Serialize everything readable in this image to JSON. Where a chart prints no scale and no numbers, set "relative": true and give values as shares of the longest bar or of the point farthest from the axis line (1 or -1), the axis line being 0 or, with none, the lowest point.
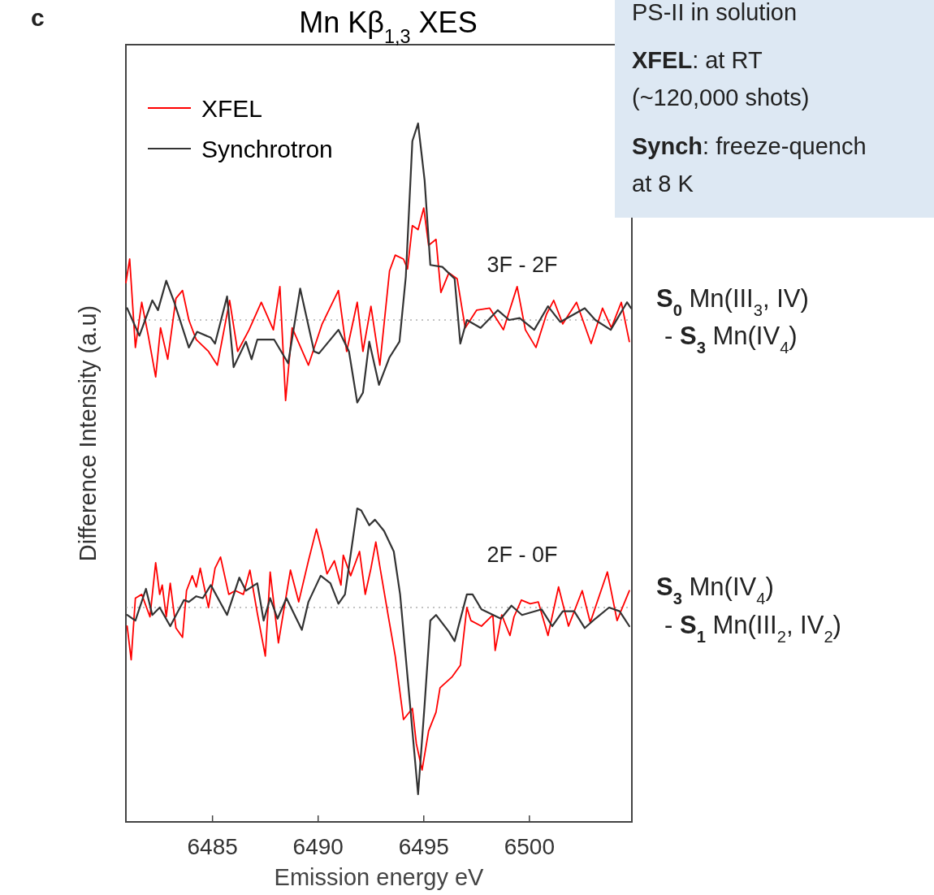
{
  "chart_data": [
    {
      "type": "line",
      "title": "Mn Kβ$_{1,3}$ XES",
      "ylabel": "Difference Intensity (a.u)",
      "relative": true,
      "xlim": [
        6480.9,
        6504.85
      ],
      "tick_labels": false,
      "legend": "top left",
      "annotations": [
        "c",
        "3F - 2F",
        "S$_{0}$ Mn(III$_{3}$, IV)",
        "- S$_{3}$ Mn(IV$_{4}$)",
        "PS-II in solution",
        "XFEL: at RT",
        "(~120,000 shots)",
        "Synch: freeze-quench",
        "at 8 K"
      ],
      "ref_lines": [
        {
          "axis": "y",
          "value": 0,
          "color": "#888888",
          "line_style": "dotted"
        }
      ],
      "series": [
        {
          "name": "XFEL",
          "color": "#ff0000",
          "x": [
            6480.9,
            6481.08,
            6481.35,
            6481.65,
            6481.96,
            6482.31,
            6482.54,
            6482.88,
            6483.27,
            6483.58,
            6483.88,
            6484.23,
            6484.81,
            6485.23,
            6485.81,
            6486.19,
            6486.73,
            6487.31,
            6487.88,
            6488.19,
            6488.46,
            6488.77,
            6489.54,
            6490.19,
            6490.96,
            6491.35,
            6491.85,
            6492.12,
            6492.5,
            6492.92,
            6493.38,
            6493.65,
            6494.04,
            6494.23,
            6494.46,
            6494.73,
            6495.0,
            6495.23,
            6495.58,
            6495.81,
            6496.19,
            6496.58,
            6496.96,
            6497.5,
            6498.12,
            6498.77,
            6499.42,
            6499.81,
            6500.31,
            6500.81,
            6501.15,
            6501.58,
            6502.23,
            6502.92,
            6503.46,
            6503.88,
            6504.35,
            6504.73
          ],
          "values": [
            0.19,
            0.31,
            -0.14,
            0.09,
            -0.08,
            -0.29,
            -0.04,
            -0.2,
            0.11,
            0.15,
            0.0,
            -0.1,
            -0.16,
            -0.23,
            0.1,
            -0.16,
            -0.05,
            0.09,
            -0.05,
            0.17,
            -0.41,
            -0.04,
            -0.23,
            -0.02,
            0.15,
            -0.16,
            0.09,
            -0.16,
            0.07,
            -0.23,
            0.25,
            0.33,
            0.31,
            0.26,
            0.48,
            0.46,
            0.57,
            0.38,
            0.41,
            0.14,
            0.24,
            0.21,
            -0.04,
            0.05,
            0.06,
            -0.05,
            0.17,
            -0.05,
            -0.14,
            0.03,
            0.1,
            -0.02,
            0.09,
            -0.12,
            0.06,
            -0.04,
            0.09,
            -0.11
          ]
        },
        {
          "name": "Synchrotron",
          "color": "#333333",
          "x": [
            6480.96,
            6481.54,
            6482.15,
            6482.42,
            6482.81,
            6483.19,
            6483.88,
            6484.27,
            6484.92,
            6485.12,
            6485.69,
            6486.0,
            6486.58,
            6486.85,
            6487.12,
            6487.92,
            6488.58,
            6489.15,
            6489.81,
            6490.04,
            6490.96,
            6491.46,
            6491.85,
            6492.12,
            6492.42,
            6492.88,
            6493.38,
            6493.85,
            6494.15,
            6494.46,
            6494.73,
            6495.04,
            6495.31,
            6495.88,
            6496.46,
            6496.73,
            6497.04,
            6497.69,
            6498.5,
            6499.04,
            6499.54,
            6500.23,
            6500.88,
            6501.46,
            6502.62,
            6503.12,
            6503.85,
            6504.62,
            6504.81
          ],
          "values": [
            0.06,
            -0.08,
            0.1,
            0.05,
            0.2,
            0.09,
            -0.14,
            -0.06,
            -0.09,
            -0.12,
            0.12,
            -0.24,
            -0.11,
            -0.2,
            -0.1,
            -0.1,
            -0.22,
            0.16,
            -0.16,
            -0.17,
            -0.05,
            -0.16,
            -0.42,
            -0.37,
            -0.11,
            -0.33,
            -0.19,
            -0.11,
            0.22,
            0.91,
            1.0,
            0.71,
            0.28,
            0.27,
            0.21,
            -0.12,
            0.0,
            -0.04,
            0.05,
            0.0,
            0.01,
            -0.05,
            0.07,
            -0.01,
            0.06,
            0.0,
            -0.05,
            0.09,
            0.06
          ]
        }
      ]
    },
    {
      "type": "line",
      "xlabel": "Emission energy eV",
      "relative": true,
      "xlim": [
        6480.9,
        6504.85
      ],
      "xticks": [
        6485,
        6490,
        6495,
        6500
      ],
      "tick_labels": "x",
      "annotations": [
        "2F - 0F",
        "S$_{3}$ Mn(IV$_{4}$)",
        "- S$_{1}$ Mn(III$_{2}$, IV$_{2}$)"
      ],
      "ref_lines": [
        {
          "axis": "y",
          "value": 0,
          "color": "#888888",
          "line_style": "dotted"
        }
      ],
      "series": [
        {
          "color": "#ff0000",
          "x": [
            6480.96,
            6481.15,
            6481.35,
            6481.65,
            6482.04,
            6482.31,
            6482.5,
            6482.62,
            6482.81,
            6483.0,
            6483.27,
            6483.58,
            6483.77,
            6484.04,
            6484.23,
            6484.42,
            6484.81,
            6485.12,
            6485.38,
            6485.77,
            6486.08,
            6486.46,
            6486.77,
            6487.12,
            6487.5,
            6487.73,
            6488.12,
            6488.38,
            6488.69,
            6489.08,
            6489.54,
            6489.92,
            6490.19,
            6490.42,
            6490.77,
            6491.08,
            6491.19,
            6491.54,
            6491.96,
            6492.23,
            6492.5,
            6492.73,
            6492.92,
            6493.31,
            6493.65,
            6494.04,
            6494.46,
            6494.65,
            6494.92,
            6495.23,
            6495.58,
            6495.77,
            6496.35,
            6496.73,
            6497.04,
            6497.23,
            6497.73,
            6498.27,
            6498.38,
            6498.69,
            6499.08,
            6499.27,
            6499.62,
            6500.04,
            6500.42,
            6500.88,
            6501.38,
            6501.85,
            6502.5,
            6502.88,
            6503.69,
            6504.15,
            6504.73
          ],
          "values": [
            -0.1,
            -0.28,
            0.05,
            0.07,
            -0.05,
            0.24,
            0.07,
            0.12,
            -0.05,
            0.13,
            -0.11,
            -0.16,
            0.09,
            0.17,
            0.11,
            0.21,
            0.0,
            0.21,
            0.27,
            0.07,
            0.09,
            0.07,
            0.2,
            -0.03,
            -0.26,
            0.19,
            -0.19,
            -0.01,
            0.2,
            0.03,
            0.25,
            0.42,
            0.3,
            0.18,
            0.25,
            0.12,
            0.28,
            0.17,
            0.3,
            0.07,
            0.21,
            0.35,
            0.22,
            -0.04,
            -0.26,
            -0.6,
            -0.54,
            -0.73,
            -0.87,
            -0.66,
            -0.56,
            -0.43,
            -0.37,
            -0.31,
            0.0,
            -0.07,
            -0.1,
            -0.04,
            -0.23,
            -0.04,
            -0.15,
            -0.05,
            0.04,
            0.02,
            0.03,
            -0.15,
            0.11,
            -0.1,
            0.09,
            -0.08,
            0.19,
            -0.07,
            0.09
          ]
        },
        {
          "color": "#333333",
          "x": [
            6480.96,
            6481.35,
            6481.85,
            6482.15,
            6482.5,
            6483.0,
            6483.65,
            6483.88,
            6484.23,
            6484.54,
            6484.92,
            6485.69,
            6486.27,
            6486.58,
            6487.12,
            6487.42,
            6487.73,
            6488.08,
            6488.5,
            6489.23,
            6489.54,
            6490.12,
            6490.58,
            6490.96,
            6491.27,
            6491.85,
            6492.04,
            6492.42,
            6492.69,
            6493.12,
            6493.58,
            6493.88,
            6494.35,
            6494.73,
            6495.04,
            6495.31,
            6495.58,
            6496.19,
            6496.46,
            6497.04,
            6497.31,
            6497.73,
            6498.65,
            6499.15,
            6499.65,
            6500.58,
            6501.08,
            6501.58,
            6502.12,
            6502.62,
            6503.12,
            6503.77,
            6504.27,
            6504.73
          ],
          "values": [
            -0.04,
            -0.07,
            0.1,
            -0.04,
            0.0,
            -0.1,
            0.04,
            0.03,
            0.06,
            0.05,
            0.12,
            -0.04,
            0.16,
            0.09,
            0.13,
            -0.07,
            0.05,
            -0.06,
            0.05,
            -0.12,
            0.03,
            0.17,
            0.13,
            0.02,
            0.07,
            0.53,
            0.52,
            0.44,
            0.47,
            0.41,
            0.3,
            0.07,
            -0.52,
            -1.0,
            -0.52,
            -0.07,
            -0.04,
            -0.13,
            -0.18,
            0.07,
            0.07,
            -0.01,
            -0.06,
            0.01,
            -0.04,
            -0.01,
            -0.1,
            -0.02,
            -0.02,
            -0.11,
            -0.06,
            0.0,
            -0.02,
            -0.1
          ]
        }
      ]
    }
  ]
}
